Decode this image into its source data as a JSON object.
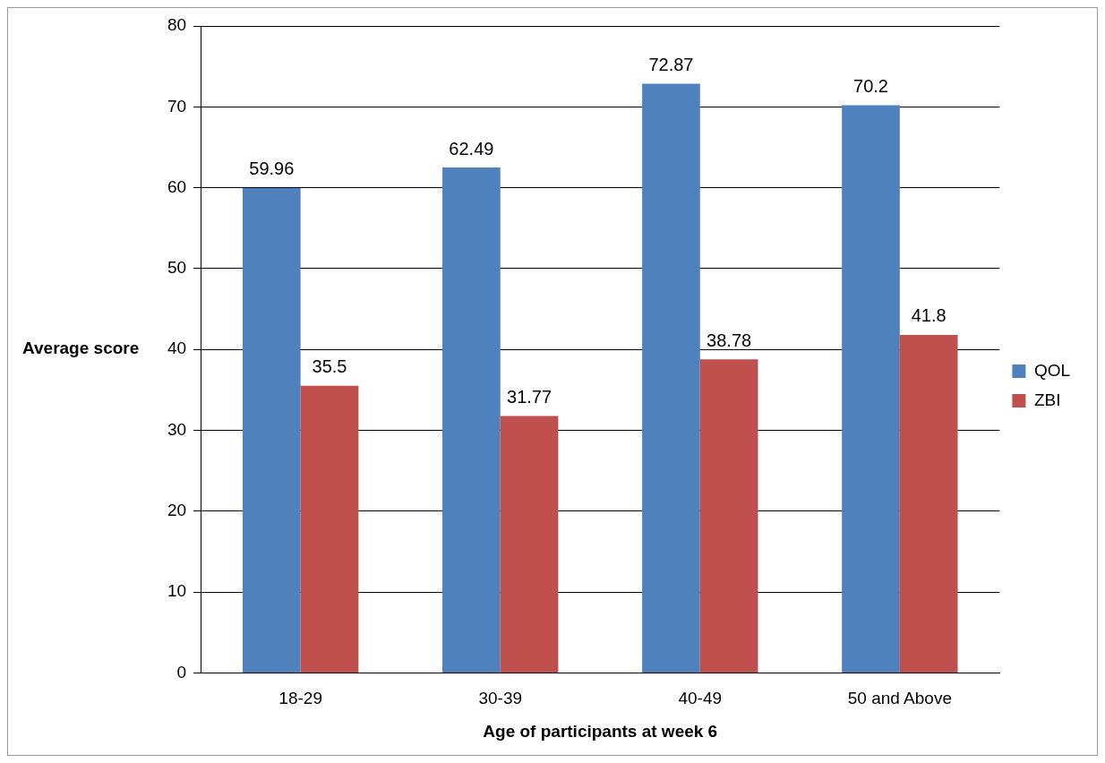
{
  "chart_data": {
    "type": "bar",
    "xlabel": "Age of participants at week 6",
    "ylabel": "Average score",
    "categories": [
      "18-29",
      "30-39",
      "40-49",
      "50 and Above"
    ],
    "series": [
      {
        "name": "QOL",
        "color": "#4f81bd",
        "values": [
          59.96,
          62.49,
          72.87,
          70.2
        ]
      },
      {
        "name": "ZBI",
        "color": "#c0504d",
        "values": [
          35.5,
          31.77,
          38.78,
          41.8
        ]
      }
    ],
    "ylim": [
      0,
      80
    ],
    "yticks": [
      0,
      10,
      20,
      30,
      40,
      50,
      60,
      70,
      80
    ],
    "grid": "y",
    "legend": "right",
    "data_labels": true
  }
}
